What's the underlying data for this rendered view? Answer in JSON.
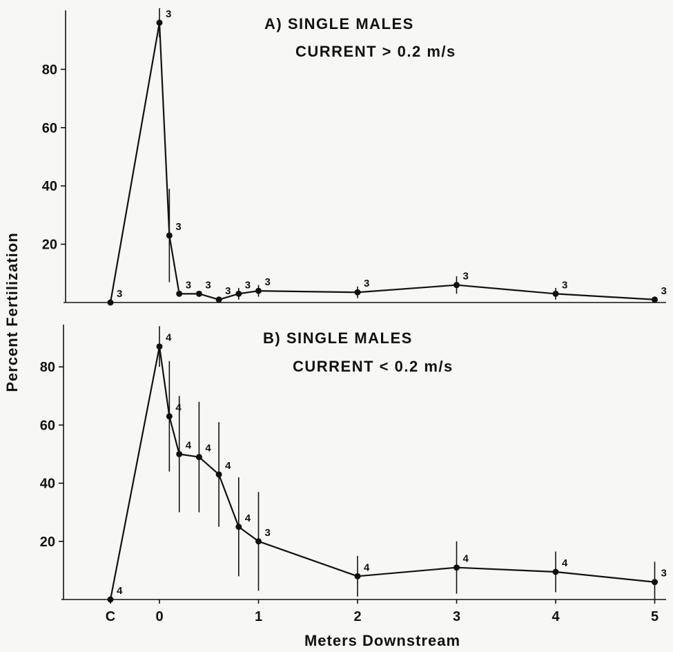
{
  "figure": {
    "xlabel": "Meters Downstream",
    "ylabel": "Percent Fertilization"
  },
  "chart_data": [
    {
      "id": "A",
      "type": "line",
      "title": "A) SINGLE MALES",
      "subtitle": "CURRENT > 0.2 m/s",
      "xlabel": "Meters Downstream",
      "ylabel": "Percent Fertilization",
      "x_tick_labels": [
        "C",
        "0",
        "1",
        "2",
        "3",
        "4",
        "5"
      ],
      "y_ticks": [
        20,
        40,
        60,
        80
      ],
      "ylim": [
        0,
        100
      ],
      "grid": false,
      "points": [
        {
          "x": "C",
          "y": 0,
          "err": 0,
          "n": "3"
        },
        {
          "x": 0,
          "y": 96,
          "err": 5,
          "n": "3"
        },
        {
          "x": 0.1,
          "y": 23,
          "err": 16,
          "n": "3"
        },
        {
          "x": 0.2,
          "y": 3,
          "err": 1,
          "n": "3"
        },
        {
          "x": 0.4,
          "y": 3,
          "err": 1,
          "n": "3"
        },
        {
          "x": 0.6,
          "y": 1,
          "err": 1,
          "n": "3"
        },
        {
          "x": 0.8,
          "y": 3,
          "err": 2,
          "n": "3"
        },
        {
          "x": 1,
          "y": 4,
          "err": 2,
          "n": "3"
        },
        {
          "x": 2,
          "y": 3.5,
          "err": 2,
          "n": "3"
        },
        {
          "x": 3,
          "y": 6,
          "err": 3,
          "n": "3"
        },
        {
          "x": 4,
          "y": 3,
          "err": 2,
          "n": "3"
        },
        {
          "x": 5,
          "y": 1,
          "err": 1,
          "n": "3"
        }
      ]
    },
    {
      "id": "B",
      "type": "line",
      "title": "B) SINGLE MALES",
      "subtitle": "CURRENT < 0.2 m/s",
      "xlabel": "Meters Downstream",
      "ylabel": "Percent Fertilization",
      "x_tick_labels": [
        "C",
        "0",
        "1",
        "2",
        "3",
        "4",
        "5"
      ],
      "y_ticks": [
        20,
        40,
        60,
        80
      ],
      "ylim": [
        0,
        100
      ],
      "grid": false,
      "points": [
        {
          "x": "C",
          "y": 0,
          "err": 0,
          "n": "4"
        },
        {
          "x": 0,
          "y": 87,
          "err": 7,
          "n": "4"
        },
        {
          "x": 0.1,
          "y": 63,
          "err": 19,
          "n": "4"
        },
        {
          "x": 0.2,
          "y": 50,
          "err": 20,
          "n": "4"
        },
        {
          "x": 0.4,
          "y": 49,
          "err": 19,
          "n": "4"
        },
        {
          "x": 0.6,
          "y": 43,
          "err": 18,
          "n": "4"
        },
        {
          "x": 0.8,
          "y": 25,
          "err": 17,
          "n": "4"
        },
        {
          "x": 1,
          "y": 20,
          "err": 17,
          "n": "3"
        },
        {
          "x": 2,
          "y": 8,
          "err": 7,
          "n": "4"
        },
        {
          "x": 3,
          "y": 11,
          "err": 9,
          "n": "4"
        },
        {
          "x": 4,
          "y": 9.5,
          "err": 7,
          "n": "4"
        },
        {
          "x": 5,
          "y": 6,
          "err": 7,
          "n": "3"
        }
      ]
    }
  ]
}
